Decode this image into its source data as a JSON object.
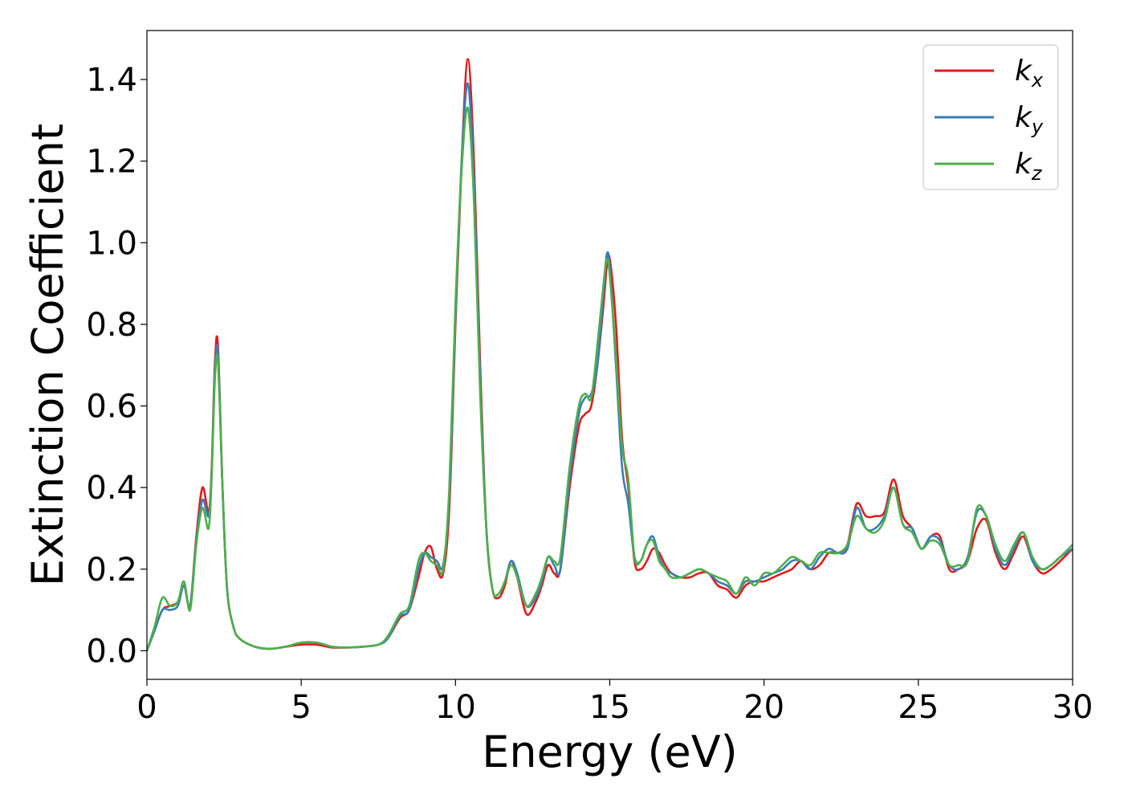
{
  "chart_data": {
    "type": "line",
    "title": "",
    "xlabel": "Energy (eV)",
    "ylabel": "Extinction Coefficient",
    "xlim": [
      0,
      30
    ],
    "ylim": [
      -0.07,
      1.52
    ],
    "xticks": [
      0,
      5,
      10,
      15,
      20,
      25,
      30
    ],
    "xtick_labels": [
      "0",
      "5",
      "10",
      "15",
      "20",
      "25",
      "30"
    ],
    "yticks": [
      0.0,
      0.2,
      0.4,
      0.6,
      0.8,
      1.0,
      1.2,
      1.4
    ],
    "ytick_labels": [
      "0.0",
      "0.2",
      "0.4",
      "0.6",
      "0.8",
      "1.0",
      "1.2",
      "1.4"
    ],
    "grid": false,
    "legend_position": "top-right",
    "series": [
      {
        "name": "k_x",
        "legend_base": "k",
        "legend_sub": "x",
        "color": "#e41a1c",
        "x": [
          0,
          0.25,
          0.5,
          0.75,
          1.0,
          1.2,
          1.4,
          1.6,
          1.8,
          2.0,
          2.1,
          2.2,
          2.3,
          2.45,
          2.6,
          2.8,
          3.0,
          3.5,
          4.0,
          4.5,
          5.0,
          5.5,
          6.0,
          6.5,
          7.0,
          7.5,
          7.8,
          8.2,
          8.5,
          8.8,
          9.0,
          9.2,
          9.4,
          9.6,
          9.8,
          10.0,
          10.2,
          10.4,
          10.6,
          10.8,
          11.0,
          11.2,
          11.4,
          11.6,
          11.8,
          12.0,
          12.3,
          12.6,
          12.8,
          13.0,
          13.2,
          13.4,
          13.7,
          14.0,
          14.2,
          14.4,
          14.6,
          14.8,
          14.9,
          15.0,
          15.2,
          15.4,
          15.6,
          15.8,
          16.0,
          16.2,
          16.4,
          16.6,
          16.8,
          17.0,
          17.3,
          17.6,
          17.9,
          18.2,
          18.5,
          18.8,
          19.1,
          19.4,
          19.7,
          20.0,
          20.3,
          20.6,
          20.9,
          21.2,
          21.5,
          21.8,
          22.1,
          22.4,
          22.7,
          23.0,
          23.3,
          23.6,
          23.9,
          24.2,
          24.5,
          24.8,
          25.1,
          25.4,
          25.7,
          26.0,
          26.3,
          26.6,
          26.9,
          27.2,
          27.5,
          27.8,
          28.1,
          28.4,
          28.7,
          29.0,
          29.3,
          29.6,
          30.0
        ],
        "y": [
          0.0,
          0.05,
          0.1,
          0.11,
          0.12,
          0.16,
          0.11,
          0.28,
          0.4,
          0.34,
          0.45,
          0.7,
          0.75,
          0.4,
          0.15,
          0.06,
          0.03,
          0.01,
          0.005,
          0.01,
          0.015,
          0.015,
          0.008,
          0.008,
          0.01,
          0.015,
          0.03,
          0.08,
          0.1,
          0.18,
          0.24,
          0.255,
          0.2,
          0.19,
          0.35,
          0.8,
          1.2,
          1.45,
          1.2,
          0.7,
          0.3,
          0.15,
          0.13,
          0.16,
          0.22,
          0.18,
          0.09,
          0.12,
          0.16,
          0.21,
          0.19,
          0.2,
          0.4,
          0.55,
          0.58,
          0.6,
          0.7,
          0.85,
          0.94,
          0.96,
          0.8,
          0.52,
          0.4,
          0.22,
          0.2,
          0.22,
          0.25,
          0.24,
          0.21,
          0.19,
          0.18,
          0.18,
          0.19,
          0.19,
          0.16,
          0.15,
          0.13,
          0.16,
          0.17,
          0.17,
          0.18,
          0.19,
          0.2,
          0.22,
          0.2,
          0.21,
          0.24,
          0.24,
          0.26,
          0.36,
          0.33,
          0.33,
          0.34,
          0.42,
          0.33,
          0.3,
          0.25,
          0.28,
          0.28,
          0.2,
          0.2,
          0.22,
          0.3,
          0.32,
          0.24,
          0.2,
          0.24,
          0.28,
          0.22,
          0.19,
          0.2,
          0.22,
          0.25
        ]
      },
      {
        "name": "k_y",
        "legend_base": "k",
        "legend_sub": "y",
        "color": "#377eb8",
        "x": [
          0,
          0.25,
          0.5,
          0.75,
          1.0,
          1.2,
          1.4,
          1.6,
          1.8,
          2.0,
          2.1,
          2.2,
          2.3,
          2.45,
          2.6,
          2.8,
          3.0,
          3.5,
          4.0,
          4.5,
          5.0,
          5.5,
          6.0,
          6.5,
          7.0,
          7.5,
          7.8,
          8.2,
          8.5,
          8.8,
          9.0,
          9.2,
          9.4,
          9.6,
          9.8,
          10.0,
          10.2,
          10.4,
          10.6,
          10.8,
          11.0,
          11.2,
          11.4,
          11.6,
          11.8,
          12.0,
          12.3,
          12.6,
          12.8,
          13.0,
          13.2,
          13.4,
          13.7,
          14.0,
          14.2,
          14.4,
          14.6,
          14.8,
          14.9,
          15.0,
          15.2,
          15.4,
          15.6,
          15.8,
          16.0,
          16.2,
          16.4,
          16.6,
          16.8,
          17.0,
          17.3,
          17.6,
          17.9,
          18.2,
          18.5,
          18.8,
          19.1,
          19.4,
          19.7,
          20.0,
          20.3,
          20.6,
          20.9,
          21.2,
          21.5,
          21.8,
          22.1,
          22.4,
          22.7,
          23.0,
          23.3,
          23.6,
          23.9,
          24.2,
          24.5,
          24.8,
          25.1,
          25.4,
          25.7,
          26.0,
          26.3,
          26.6,
          26.9,
          27.2,
          27.5,
          27.8,
          28.1,
          28.4,
          28.7,
          29.0,
          29.3,
          29.6,
          30.0
        ],
        "y": [
          0.0,
          0.05,
          0.1,
          0.1,
          0.11,
          0.16,
          0.11,
          0.27,
          0.37,
          0.33,
          0.44,
          0.68,
          0.73,
          0.4,
          0.15,
          0.06,
          0.03,
          0.01,
          0.005,
          0.01,
          0.02,
          0.02,
          0.01,
          0.008,
          0.01,
          0.015,
          0.03,
          0.085,
          0.1,
          0.2,
          0.24,
          0.23,
          0.22,
          0.21,
          0.38,
          0.82,
          1.2,
          1.39,
          1.15,
          0.66,
          0.3,
          0.15,
          0.14,
          0.17,
          0.22,
          0.19,
          0.11,
          0.13,
          0.17,
          0.23,
          0.21,
          0.2,
          0.42,
          0.58,
          0.62,
          0.63,
          0.7,
          0.88,
          0.97,
          0.94,
          0.7,
          0.45,
          0.36,
          0.23,
          0.22,
          0.26,
          0.28,
          0.23,
          0.2,
          0.19,
          0.18,
          0.19,
          0.2,
          0.19,
          0.17,
          0.16,
          0.14,
          0.17,
          0.17,
          0.18,
          0.19,
          0.2,
          0.22,
          0.22,
          0.2,
          0.23,
          0.25,
          0.24,
          0.25,
          0.35,
          0.3,
          0.3,
          0.33,
          0.4,
          0.31,
          0.3,
          0.25,
          0.28,
          0.27,
          0.21,
          0.2,
          0.23,
          0.34,
          0.33,
          0.25,
          0.21,
          0.25,
          0.29,
          0.22,
          0.2,
          0.21,
          0.23,
          0.25
        ]
      },
      {
        "name": "k_z",
        "legend_base": "k",
        "legend_sub": "z",
        "color": "#4daf4a",
        "x": [
          0,
          0.25,
          0.5,
          0.75,
          1.0,
          1.2,
          1.4,
          1.6,
          1.8,
          2.0,
          2.1,
          2.2,
          2.3,
          2.45,
          2.6,
          2.8,
          3.0,
          3.5,
          4.0,
          4.5,
          5.0,
          5.5,
          6.0,
          6.5,
          7.0,
          7.5,
          7.8,
          8.2,
          8.5,
          8.8,
          9.0,
          9.2,
          9.4,
          9.6,
          9.8,
          10.0,
          10.2,
          10.4,
          10.6,
          10.8,
          11.0,
          11.2,
          11.4,
          11.6,
          11.8,
          12.0,
          12.3,
          12.6,
          12.8,
          13.0,
          13.2,
          13.4,
          13.7,
          14.0,
          14.2,
          14.4,
          14.6,
          14.8,
          14.9,
          15.0,
          15.2,
          15.4,
          15.6,
          15.8,
          16.0,
          16.2,
          16.4,
          16.6,
          16.8,
          17.0,
          17.3,
          17.6,
          17.9,
          18.2,
          18.5,
          18.8,
          19.1,
          19.4,
          19.7,
          20.0,
          20.3,
          20.6,
          20.9,
          21.2,
          21.5,
          21.8,
          22.1,
          22.4,
          22.7,
          23.0,
          23.3,
          23.6,
          23.9,
          24.2,
          24.5,
          24.8,
          25.1,
          25.4,
          25.7,
          26.0,
          26.3,
          26.6,
          26.9,
          27.2,
          27.5,
          27.8,
          28.1,
          28.4,
          28.7,
          29.0,
          29.3,
          29.6,
          30.0
        ],
        "y": [
          0.0,
          0.06,
          0.13,
          0.11,
          0.12,
          0.17,
          0.1,
          0.26,
          0.35,
          0.3,
          0.43,
          0.66,
          0.71,
          0.4,
          0.15,
          0.06,
          0.03,
          0.01,
          0.005,
          0.01,
          0.02,
          0.02,
          0.01,
          0.008,
          0.01,
          0.015,
          0.035,
          0.09,
          0.11,
          0.22,
          0.24,
          0.22,
          0.21,
          0.2,
          0.4,
          0.85,
          1.18,
          1.33,
          1.1,
          0.63,
          0.3,
          0.15,
          0.14,
          0.17,
          0.21,
          0.18,
          0.11,
          0.14,
          0.18,
          0.23,
          0.22,
          0.23,
          0.45,
          0.6,
          0.63,
          0.62,
          0.75,
          0.9,
          0.96,
          0.92,
          0.72,
          0.5,
          0.42,
          0.23,
          0.22,
          0.26,
          0.27,
          0.22,
          0.2,
          0.18,
          0.18,
          0.19,
          0.2,
          0.19,
          0.18,
          0.17,
          0.14,
          0.18,
          0.16,
          0.19,
          0.19,
          0.21,
          0.23,
          0.22,
          0.21,
          0.24,
          0.24,
          0.24,
          0.26,
          0.33,
          0.3,
          0.29,
          0.32,
          0.4,
          0.31,
          0.29,
          0.25,
          0.27,
          0.26,
          0.21,
          0.21,
          0.22,
          0.35,
          0.33,
          0.26,
          0.22,
          0.26,
          0.29,
          0.23,
          0.2,
          0.21,
          0.23,
          0.26
        ]
      }
    ]
  }
}
